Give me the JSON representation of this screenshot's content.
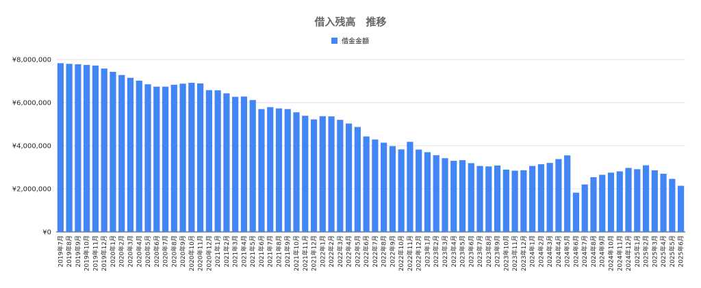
{
  "chart_data": {
    "type": "bar",
    "title": "借入残高　推移",
    "legend": {
      "position": "top",
      "entries": [
        "借金金額"
      ]
    },
    "series": [
      {
        "name": "借金金額",
        "color": "#4285f4",
        "values": [
          7830000,
          7800000,
          7780000,
          7750000,
          7720000,
          7580000,
          7430000,
          7280000,
          7150000,
          7020000,
          6850000,
          6740000,
          6740000,
          6830000,
          6880000,
          6920000,
          6890000,
          6580000,
          6570000,
          6430000,
          6270000,
          6280000,
          6120000,
          5700000,
          5790000,
          5730000,
          5700000,
          5550000,
          5390000,
          5220000,
          5370000,
          5360000,
          5200000,
          5030000,
          4870000,
          4430000,
          4290000,
          4140000,
          3980000,
          3830000,
          4180000,
          3820000,
          3700000,
          3560000,
          3420000,
          3300000,
          3330000,
          3190000,
          3060000,
          3040000,
          3080000,
          2890000,
          2840000,
          2860000,
          3060000,
          3140000,
          3200000,
          3380000,
          3550000,
          1820000,
          2200000,
          2540000,
          2650000,
          2750000,
          2810000,
          2970000,
          2910000,
          3090000,
          2860000,
          2700000,
          2460000,
          2140000
        ]
      }
    ],
    "categories": [
      "2019年7月",
      "2019年8月",
      "2019年9月",
      "2019年10月",
      "2019年11月",
      "2019年12月",
      "2020年1月",
      "2020年2月",
      "2020年3月",
      "2020年4月",
      "2020年5月",
      "2020年6月",
      "2020年7月",
      "2020年8月",
      "2020年9月",
      "2020年10月",
      "2020年11月",
      "2020年12月",
      "2021年1月",
      "2021年2月",
      "2021年3月",
      "2021年4月",
      "2021年5月",
      "2021年6月",
      "2021年7月",
      "2021年8月",
      "2021年9月",
      "2021年10月",
      "2021年11月",
      "2021年12月",
      "2022年1月",
      "2022年2月",
      "2022年3月",
      "2022年4月",
      "2022年5月",
      "2022年6月",
      "2022年7月",
      "2022年8月",
      "2022年9月",
      "2022年10月",
      "2022年11月",
      "2022年12月",
      "2023年1月",
      "2023年2月",
      "2023年3月",
      "2023年4月",
      "2023年5月",
      "2023年6月",
      "2023年7月",
      "2023年8月",
      "2023年9月",
      "2023年10月",
      "2023年11月",
      "2023年12月",
      "2024年1月",
      "2024年2月",
      "2024年3月",
      "2024年4月",
      "2024年5月",
      "2024年6月",
      "2024年7月",
      "2024年8月",
      "2024年9月",
      "2024年10月",
      "2024年11月",
      "2024年12月",
      "2025年1月",
      "2025年2月",
      "2025年3月",
      "2025年4月",
      "2025年5月",
      "2025年6月"
    ],
    "y_ticks": [
      "¥0",
      "¥2,000,000",
      "¥4,000,000",
      "¥6,000,000",
      "¥8,000,000"
    ],
    "ylim": [
      0,
      8000000
    ],
    "grid": true
  }
}
